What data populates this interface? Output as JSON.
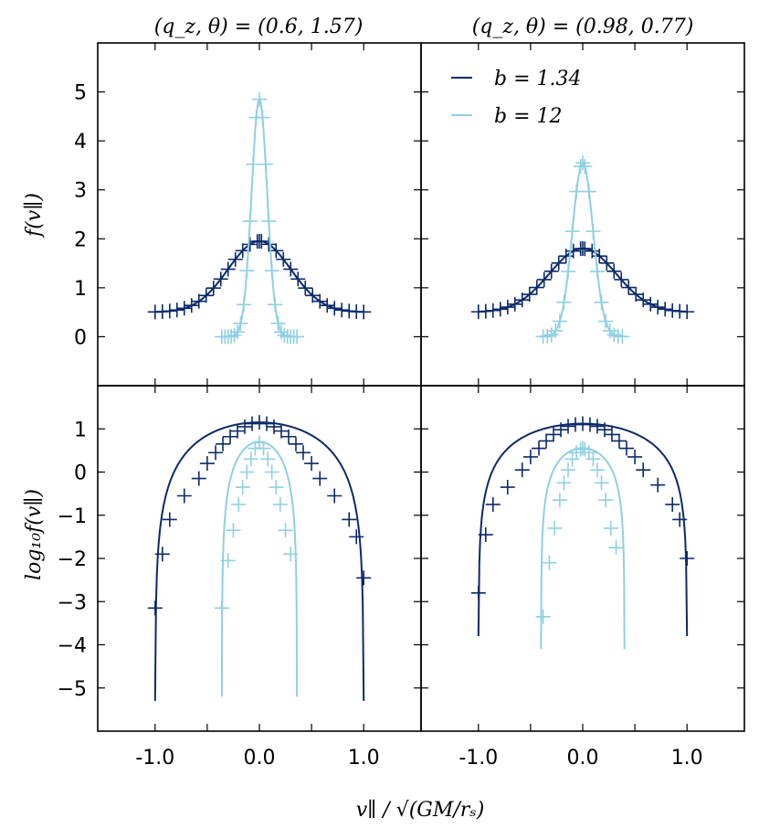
{
  "figure": {
    "xlabel": "v∥ / √(GM/rₛ)",
    "ylabel_top": "f(v∥)",
    "ylabel_bottom": "log₁₀f(v∥)",
    "col_titles": [
      "(q_z, θ) = (0.6, 1.57)",
      "(q_z, θ) = (0.98, 0.77)"
    ],
    "legend": [
      {
        "label": "b = 1.34",
        "color": "#0b2a6a"
      },
      {
        "label": "b = 12",
        "color": "#8fd0e2"
      }
    ],
    "colors": {
      "dark": "#0b2a6a",
      "light": "#8fd0e2",
      "axes": "#000000"
    }
  },
  "chart_data": [
    {
      "type": "line",
      "panel": "top-left",
      "title": "(q_z, θ) = (0.6, 1.57)",
      "xlim": [
        -1.55,
        1.55
      ],
      "ylim": [
        -1.0,
        6.0
      ],
      "yticks": [
        0,
        1,
        2,
        3,
        4,
        5
      ],
      "xticks": [],
      "series": [
        {
          "name": "b = 1.34",
          "kind": "gaussian",
          "base": 0.5,
          "amp": 1.45,
          "sigma": 0.3,
          "xmin": -1.0,
          "xmax": 1.0,
          "markers_x": [
            -1.0,
            -0.93,
            -0.86,
            -0.79,
            -0.72,
            -0.65,
            -0.58,
            -0.51,
            -0.44,
            -0.37,
            -0.3,
            -0.23,
            -0.16,
            -0.09,
            -0.02,
            0.0,
            0.02,
            0.09,
            0.16,
            0.23,
            0.3,
            0.37,
            0.44,
            0.51,
            0.58,
            0.65,
            0.72,
            0.79,
            0.86,
            0.93,
            1.0
          ]
        },
        {
          "name": "b = 12",
          "kind": "gaussian",
          "base": 0.0,
          "amp": 4.85,
          "sigma": 0.075,
          "xmin": -0.36,
          "xmax": 0.36,
          "markers_x": [
            -0.36,
            -0.33,
            -0.3,
            -0.27,
            -0.24,
            -0.21,
            -0.18,
            -0.15,
            -0.12,
            -0.09,
            -0.06,
            -0.03,
            0.0,
            0.03,
            0.06,
            0.09,
            0.12,
            0.15,
            0.18,
            0.21,
            0.24,
            0.27,
            0.3,
            0.33,
            0.36
          ]
        }
      ]
    },
    {
      "type": "line",
      "panel": "top-right",
      "title": "(q_z, θ) = (0.98, 0.77)",
      "xlim": [
        -1.55,
        1.55
      ],
      "ylim": [
        -1.0,
        6.0
      ],
      "yticks": [],
      "xticks": [],
      "series": [
        {
          "name": "b = 1.34",
          "kind": "gaussian",
          "base": 0.5,
          "amp": 1.3,
          "sigma": 0.32,
          "xmin": -1.0,
          "xmax": 1.0,
          "markers_x": [
            -1.0,
            -0.93,
            -0.86,
            -0.79,
            -0.72,
            -0.65,
            -0.58,
            -0.51,
            -0.44,
            -0.37,
            -0.3,
            -0.23,
            -0.16,
            -0.09,
            -0.02,
            0.0,
            0.02,
            0.09,
            0.16,
            0.23,
            0.3,
            0.37,
            0.44,
            0.51,
            0.58,
            0.65,
            0.72,
            0.79,
            0.86,
            0.93,
            1.0
          ]
        },
        {
          "name": "b = 12",
          "kind": "gaussian",
          "base": 0.0,
          "amp": 3.55,
          "sigma": 0.1,
          "xmin": -0.38,
          "xmax": 0.38,
          "markers_x": [
            -0.38,
            -0.34,
            -0.3,
            -0.26,
            -0.22,
            -0.18,
            -0.14,
            -0.1,
            -0.06,
            -0.02,
            0.0,
            0.02,
            0.06,
            0.1,
            0.14,
            0.18,
            0.22,
            0.26,
            0.3,
            0.34,
            0.38
          ]
        }
      ]
    },
    {
      "type": "line",
      "panel": "bottom-left",
      "xlim": [
        -1.55,
        1.55
      ],
      "ylim": [
        -6.0,
        2.0
      ],
      "yticks": [
        -5,
        -4,
        -3,
        -2,
        -1,
        0,
        1
      ],
      "xticks": [
        -1.0,
        0.0,
        1.0
      ],
      "xticklabels": [
        "-1.0",
        "0.0",
        "1.0"
      ],
      "series": [
        {
          "name": "b = 1.34",
          "kind": "log",
          "peak": 1.15,
          "xmax": 1.0,
          "p": 0.73,
          "line_min": -5.3,
          "markers": [
            [
              -1.0,
              -3.15
            ],
            [
              -0.93,
              -1.9
            ],
            [
              -0.86,
              -1.1
            ],
            [
              -0.72,
              -0.55
            ],
            [
              -0.58,
              -0.15
            ],
            [
              -0.5,
              0.2
            ],
            [
              -0.42,
              0.45
            ],
            [
              -0.35,
              0.65
            ],
            [
              -0.28,
              0.82
            ],
            [
              -0.21,
              0.95
            ],
            [
              -0.14,
              1.05
            ],
            [
              -0.07,
              1.12
            ],
            [
              0.0,
              1.15
            ],
            [
              0.07,
              1.12
            ],
            [
              0.14,
              1.05
            ],
            [
              0.21,
              0.95
            ],
            [
              0.28,
              0.82
            ],
            [
              0.35,
              0.65
            ],
            [
              0.42,
              0.45
            ],
            [
              0.5,
              0.2
            ],
            [
              0.58,
              -0.15
            ],
            [
              0.72,
              -0.55
            ],
            [
              0.86,
              -1.1
            ],
            [
              0.93,
              -1.5
            ],
            [
              1.0,
              -2.45
            ]
          ]
        },
        {
          "name": "b = 12",
          "kind": "log",
          "peak": 0.7,
          "xmax": 0.36,
          "p": 0.52,
          "line_min": -5.2,
          "markers": [
            [
              -0.36,
              -3.15
            ],
            [
              -0.3,
              -2.05
            ],
            [
              -0.25,
              -1.35
            ],
            [
              -0.2,
              -0.75
            ],
            [
              -0.16,
              -0.35
            ],
            [
              -0.12,
              0.0
            ],
            [
              -0.08,
              0.3
            ],
            [
              -0.04,
              0.55
            ],
            [
              0.0,
              0.68
            ],
            [
              0.04,
              0.55
            ],
            [
              0.08,
              0.3
            ],
            [
              0.12,
              0.0
            ],
            [
              0.16,
              -0.35
            ],
            [
              0.2,
              -0.75
            ],
            [
              0.25,
              -1.35
            ],
            [
              0.3,
              -1.9
            ]
          ]
        }
      ]
    },
    {
      "type": "line",
      "panel": "bottom-right",
      "xlim": [
        -1.55,
        1.55
      ],
      "ylim": [
        -6.0,
        2.0
      ],
      "yticks": [],
      "xticks": [
        -1.0,
        0.0,
        1.0
      ],
      "xticklabels": [
        "-1.0",
        "0.0",
        "1.0"
      ],
      "series": [
        {
          "name": "b = 1.34",
          "kind": "log",
          "peak": 1.12,
          "xmax": 1.0,
          "p": 0.8,
          "line_min": -3.8,
          "markers": [
            [
              -1.0,
              -2.8
            ],
            [
              -0.93,
              -1.45
            ],
            [
              -0.86,
              -0.75
            ],
            [
              -0.72,
              -0.35
            ],
            [
              -0.58,
              0.05
            ],
            [
              -0.5,
              0.35
            ],
            [
              -0.42,
              0.55
            ],
            [
              -0.35,
              0.72
            ],
            [
              -0.28,
              0.87
            ],
            [
              -0.21,
              0.98
            ],
            [
              -0.14,
              1.06
            ],
            [
              -0.07,
              1.1
            ],
            [
              0.0,
              1.12
            ],
            [
              0.07,
              1.1
            ],
            [
              0.14,
              1.06
            ],
            [
              0.21,
              0.98
            ],
            [
              0.28,
              0.87
            ],
            [
              0.35,
              0.72
            ],
            [
              0.42,
              0.55
            ],
            [
              0.5,
              0.35
            ],
            [
              0.58,
              0.05
            ],
            [
              0.72,
              -0.3
            ],
            [
              0.86,
              -0.75
            ],
            [
              0.93,
              -1.1
            ],
            [
              1.0,
              -2.0
            ]
          ]
        },
        {
          "name": "b = 12",
          "kind": "log",
          "peak": 0.55,
          "xmax": 0.4,
          "p": 0.5,
          "line_min": -4.1,
          "markers": [
            [
              -0.38,
              -3.35
            ],
            [
              -0.32,
              -2.1
            ],
            [
              -0.27,
              -1.3
            ],
            [
              -0.22,
              -0.65
            ],
            [
              -0.18,
              -0.25
            ],
            [
              -0.14,
              0.05
            ],
            [
              -0.1,
              0.3
            ],
            [
              -0.06,
              0.45
            ],
            [
              -0.02,
              0.53
            ],
            [
              0.0,
              0.55
            ],
            [
              0.02,
              0.53
            ],
            [
              0.06,
              0.45
            ],
            [
              0.1,
              0.3
            ],
            [
              0.14,
              0.05
            ],
            [
              0.18,
              -0.25
            ],
            [
              0.22,
              -0.65
            ],
            [
              0.27,
              -1.3
            ],
            [
              0.32,
              -1.75
            ]
          ]
        }
      ]
    }
  ]
}
